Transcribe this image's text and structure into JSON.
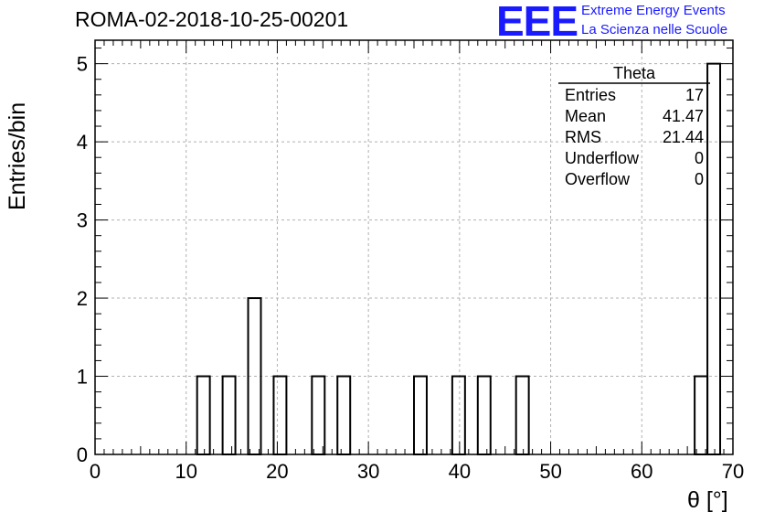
{
  "header": {
    "title": "ROMA-02-2018-10-25-00201",
    "logo_text": "EEE",
    "logo_line1": "Extreme Energy Events",
    "logo_line2": "La Scienza nelle Scuole"
  },
  "colors": {
    "logo": "#1a1aff",
    "grid": "#b0b0b0",
    "line": "#000000"
  },
  "stats": {
    "name": "Theta",
    "rows": [
      {
        "label": "Entries",
        "value": "17"
      },
      {
        "label": "Mean",
        "value": "41.47"
      },
      {
        "label": "RMS",
        "value": "21.44"
      },
      {
        "label": "Underflow",
        "value": "0"
      },
      {
        "label": "Overflow",
        "value": "0"
      }
    ]
  },
  "chart_data": {
    "type": "histogram",
    "title": "ROMA-02-2018-10-25-00201",
    "xlabel": "θ [°]",
    "ylabel": "Entries/bin",
    "xlim": [
      0,
      70
    ],
    "ylim": [
      0,
      5.3
    ],
    "x_ticks": [
      0,
      10,
      20,
      30,
      40,
      50,
      60,
      70
    ],
    "y_ticks": [
      0,
      1,
      2,
      3,
      4,
      5
    ],
    "grid": true,
    "bin_width": 1.4,
    "bins": [
      {
        "low": 11.2,
        "high": 12.6,
        "count": 1
      },
      {
        "low": 14.0,
        "high": 15.4,
        "count": 1
      },
      {
        "low": 16.8,
        "high": 18.2,
        "count": 2
      },
      {
        "low": 19.6,
        "high": 21.0,
        "count": 1
      },
      {
        "low": 23.8,
        "high": 25.2,
        "count": 1
      },
      {
        "low": 26.6,
        "high": 28.0,
        "count": 1
      },
      {
        "low": 35.0,
        "high": 36.4,
        "count": 1
      },
      {
        "low": 39.2,
        "high": 40.6,
        "count": 1
      },
      {
        "low": 42.0,
        "high": 43.4,
        "count": 1
      },
      {
        "low": 46.2,
        "high": 47.6,
        "count": 1
      },
      {
        "low": 65.8,
        "high": 67.2,
        "count": 1
      },
      {
        "low": 67.2,
        "high": 68.6,
        "count": 5
      }
    ]
  }
}
